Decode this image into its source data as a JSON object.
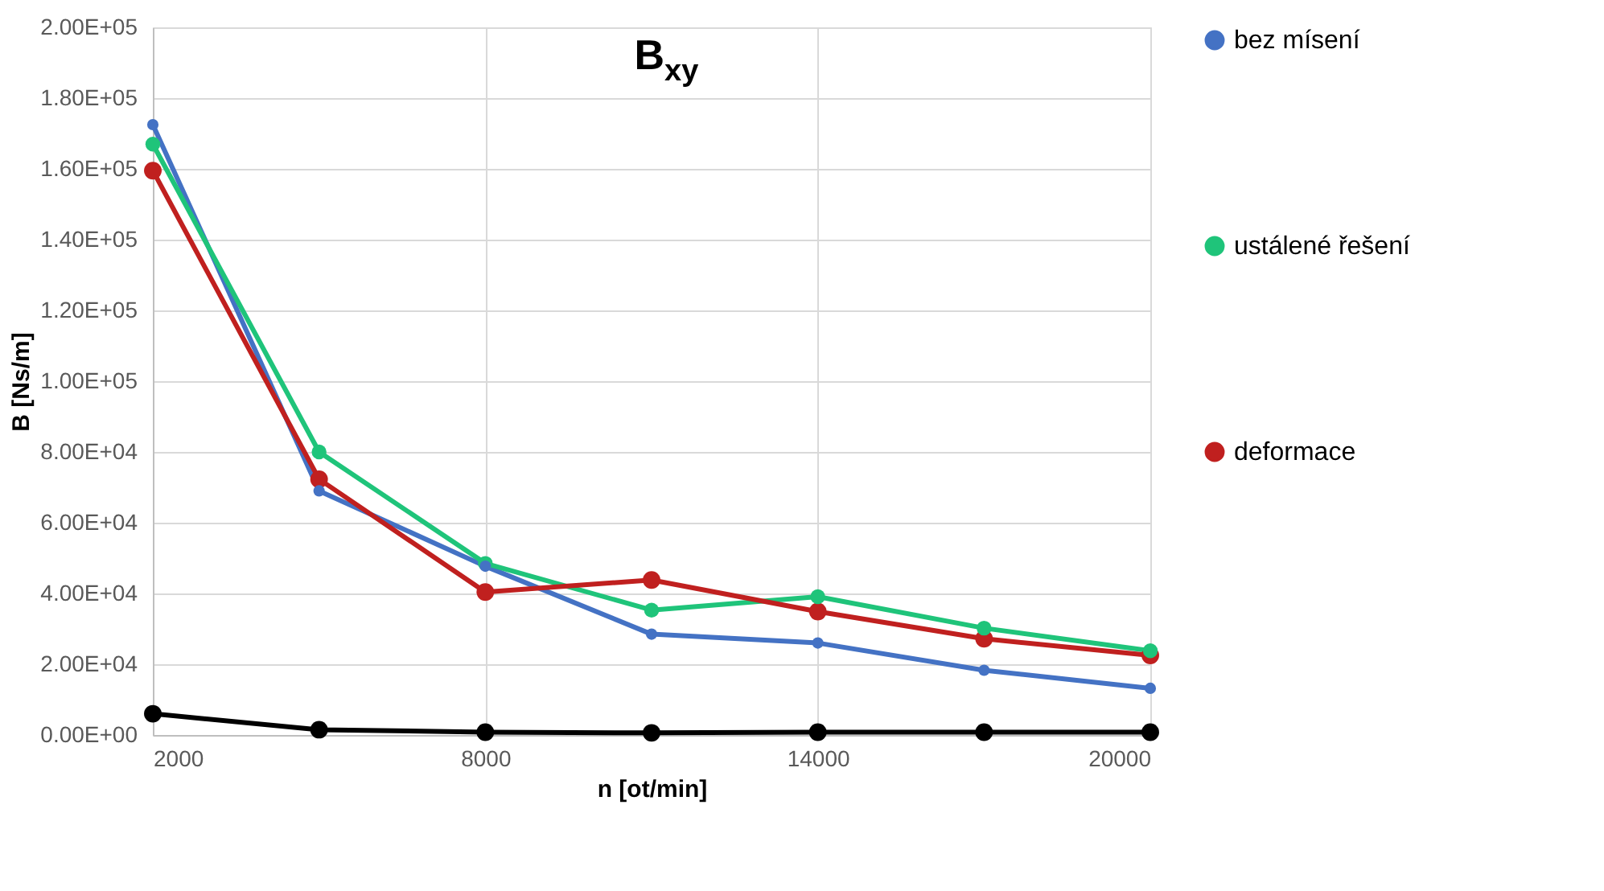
{
  "chart_data": {
    "type": "line",
    "title": "B$_{xy}$",
    "xlabel": "n [ot/min]",
    "ylabel": "B [Ns/m]",
    "x": [
      2000,
      5000,
      8000,
      11000,
      14000,
      17000,
      20000
    ],
    "series": [
      {
        "name": "bez mísení",
        "color": "#4472c4",
        "values": [
          172500,
          69000,
          47700,
          28500,
          26000,
          18300,
          13200
        ]
      },
      {
        "name": "ustálené řešení",
        "color": "#1fc47a",
        "values": [
          167000,
          80000,
          48500,
          35300,
          39100,
          30200,
          23800
        ]
      },
      {
        "name": "deformace",
        "color": "#c0201f",
        "values": [
          159500,
          72300,
          40400,
          43800,
          34900,
          27200,
          22500
        ]
      },
      {
        "color": "#000000",
        "values": [
          6000,
          1500,
          800,
          600,
          800,
          800,
          800
        ]
      }
    ],
    "xlim": [
      2000,
      20000
    ],
    "xticks": [
      2000,
      8000,
      14000,
      20000
    ],
    "ylim": [
      0,
      200000
    ],
    "yticks": [
      {
        "value": 0,
        "label": "0.00E+00"
      },
      {
        "value": 20000,
        "label": "2.00E+04"
      },
      {
        "value": 40000,
        "label": "4.00E+04"
      },
      {
        "value": 60000,
        "label": "6.00E+04"
      },
      {
        "value": 80000,
        "label": "8.00E+04"
      },
      {
        "value": 100000,
        "label": "1.00E+05"
      },
      {
        "value": 120000,
        "label": "1.20E+05"
      },
      {
        "value": 140000,
        "label": "1.40E+05"
      },
      {
        "value": 160000,
        "label": "1.60E+05"
      },
      {
        "value": 180000,
        "label": "1.80E+05"
      },
      {
        "value": 200000,
        "label": "2.00E+05"
      }
    ],
    "grid": true,
    "legend": "right",
    "marker": "circle",
    "line_style": "solid"
  }
}
